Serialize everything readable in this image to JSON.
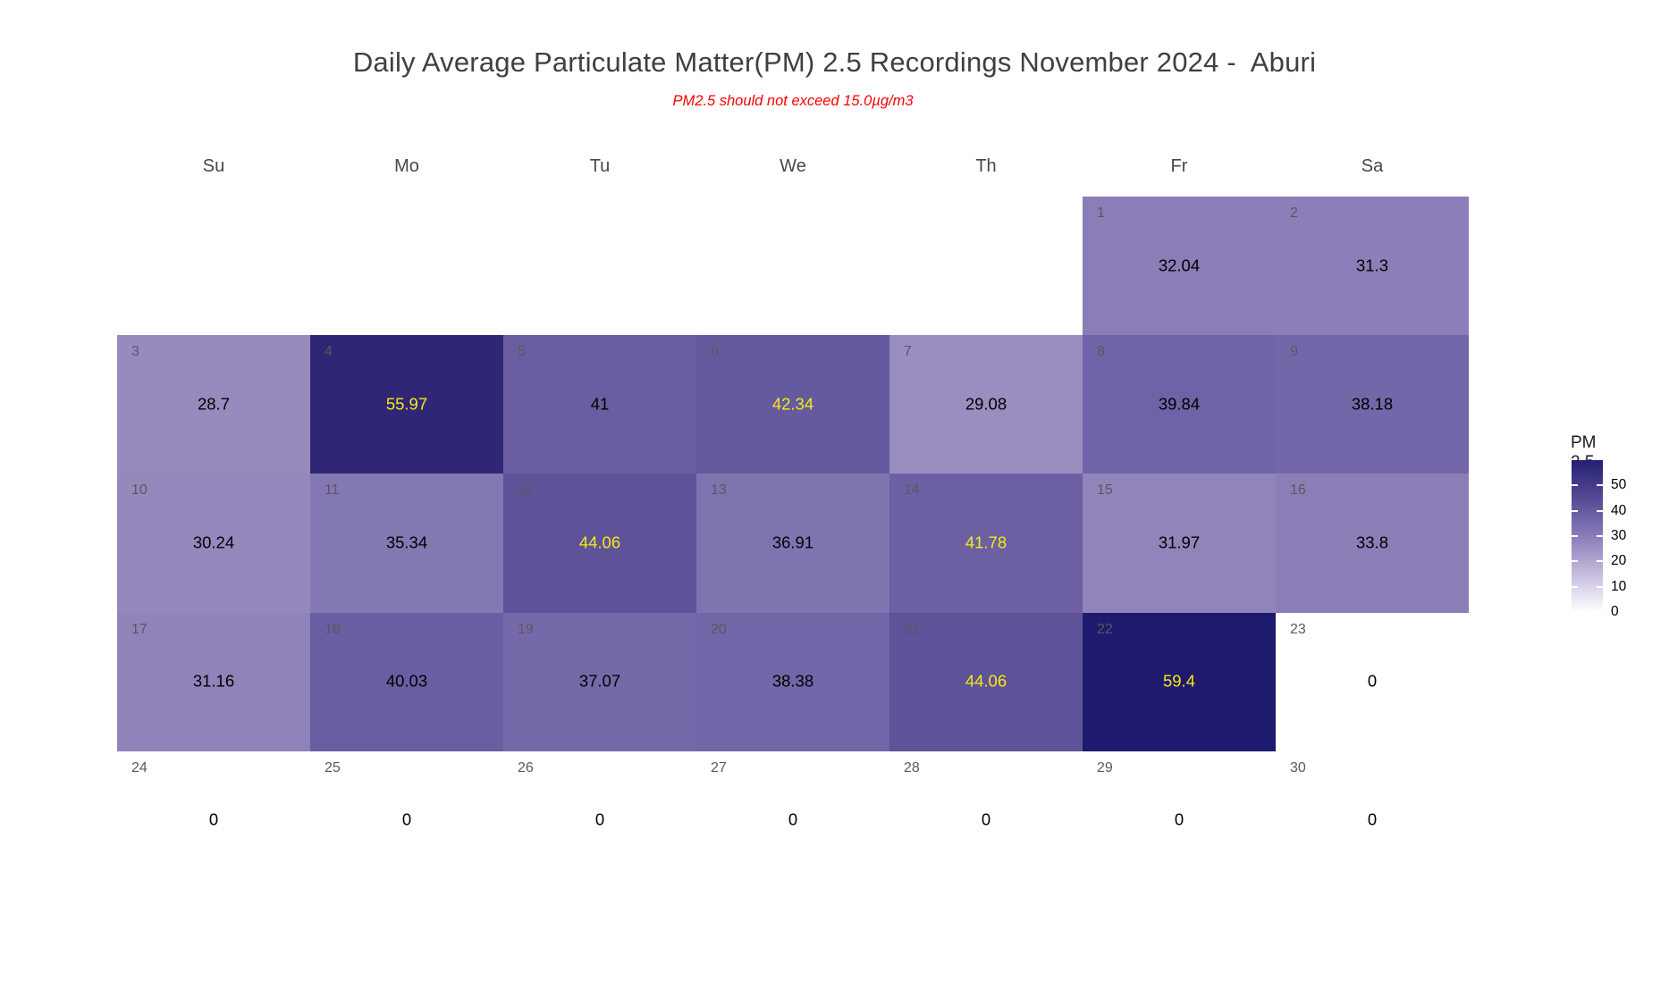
{
  "title": {
    "text": "Daily Average Particulate Matter(PM) 2.5 Recordings November 2024 -  Aburi",
    "color": "#3f3f3f"
  },
  "subtitle": {
    "text": "PM2.5 should not exceed 15.0µg/m3",
    "color": "#ff0000"
  },
  "chart_data": {
    "type": "heatmap",
    "subtype": "calendar-heatmap",
    "month": "November 2024",
    "location": "Aburi",
    "day_headers": [
      "Su",
      "Mo",
      "Tu",
      "We",
      "Th",
      "Fr",
      "Sa"
    ],
    "value_range": [
      0,
      60
    ],
    "day_number_color": "#5b5760",
    "default_value_color": "#000000",
    "exceed_value_color": "#f7e918",
    "cells": [
      {
        "day": 1,
        "col": 5,
        "week": 0,
        "value": 32.04,
        "label": "32.04",
        "bg": "#8b7db7",
        "fg": "#000000"
      },
      {
        "day": 2,
        "col": 6,
        "week": 0,
        "value": 31.3,
        "label": "31.3",
        "bg": "#8c7eb8",
        "fg": "#000000"
      },
      {
        "day": 3,
        "col": 0,
        "week": 1,
        "value": 28.7,
        "label": "28.7",
        "bg": "#978abd",
        "fg": "#000000"
      },
      {
        "day": 4,
        "col": 1,
        "week": 1,
        "value": 55.97,
        "label": "55.97",
        "bg": "#2f2776",
        "fg": "#f7e918"
      },
      {
        "day": 5,
        "col": 2,
        "week": 1,
        "value": 41,
        "label": "41",
        "bg": "#6a5da1",
        "fg": "#000000"
      },
      {
        "day": 6,
        "col": 3,
        "week": 1,
        "value": 42.34,
        "label": "42.34",
        "bg": "#655a9e",
        "fg": "#f7e918"
      },
      {
        "day": 7,
        "col": 4,
        "week": 1,
        "value": 29.08,
        "label": "29.08",
        "bg": "#9a8dc0",
        "fg": "#000000"
      },
      {
        "day": 8,
        "col": 5,
        "week": 1,
        "value": 39.84,
        "label": "39.84",
        "bg": "#6f63a7",
        "fg": "#000000"
      },
      {
        "day": 9,
        "col": 6,
        "week": 1,
        "value": 38.18,
        "label": "38.18",
        "bg": "#7367a9",
        "fg": "#000000"
      },
      {
        "day": 10,
        "col": 0,
        "week": 2,
        "value": 30.24,
        "label": "30.24",
        "bg": "#9488bc",
        "fg": "#000000"
      },
      {
        "day": 11,
        "col": 1,
        "week": 2,
        "value": 35.34,
        "label": "35.34",
        "bg": "#8478b3",
        "fg": "#000000"
      },
      {
        "day": 12,
        "col": 2,
        "week": 2,
        "value": 44.06,
        "label": "44.06",
        "bg": "#5e5299",
        "fg": "#f7e918"
      },
      {
        "day": 13,
        "col": 3,
        "week": 2,
        "value": 36.91,
        "label": "36.91",
        "bg": "#7f73b0",
        "fg": "#000000"
      },
      {
        "day": 14,
        "col": 4,
        "week": 2,
        "value": 41.78,
        "label": "41.78",
        "bg": "#6c60a3",
        "fg": "#f7e918"
      },
      {
        "day": 15,
        "col": 5,
        "week": 2,
        "value": 31.97,
        "label": "31.97",
        "bg": "#9184bb",
        "fg": "#000000"
      },
      {
        "day": 16,
        "col": 6,
        "week": 2,
        "value": 33.8,
        "label": "33.8",
        "bg": "#8b7eb7",
        "fg": "#000000"
      },
      {
        "day": 17,
        "col": 0,
        "week": 3,
        "value": 31.16,
        "label": "31.16",
        "bg": "#9083ba",
        "fg": "#000000"
      },
      {
        "day": 18,
        "col": 1,
        "week": 3,
        "value": 40.03,
        "label": "40.03",
        "bg": "#6a5ea2",
        "fg": "#000000"
      },
      {
        "day": 19,
        "col": 2,
        "week": 3,
        "value": 37.07,
        "label": "37.07",
        "bg": "#7569aa",
        "fg": "#000000"
      },
      {
        "day": 20,
        "col": 3,
        "week": 3,
        "value": 38.38,
        "label": "38.38",
        "bg": "#7266a8",
        "fg": "#000000"
      },
      {
        "day": 21,
        "col": 4,
        "week": 3,
        "value": 44.06,
        "label": "44.06",
        "bg": "#5e5299",
        "fg": "#f7e918"
      },
      {
        "day": 22,
        "col": 5,
        "week": 3,
        "value": 59.4,
        "label": "59.4",
        "bg": "#1e1a6d",
        "fg": "#f7e918"
      },
      {
        "day": 23,
        "col": 6,
        "week": 3,
        "value": 0,
        "label": "0",
        "bg": "#ffffff",
        "fg": "#000000"
      },
      {
        "day": 24,
        "col": 0,
        "week": 4,
        "value": 0,
        "label": "0",
        "bg": "#ffffff",
        "fg": "#000000"
      },
      {
        "day": 25,
        "col": 1,
        "week": 4,
        "value": 0,
        "label": "0",
        "bg": "#ffffff",
        "fg": "#000000"
      },
      {
        "day": 26,
        "col": 2,
        "week": 4,
        "value": 0,
        "label": "0",
        "bg": "#ffffff",
        "fg": "#000000"
      },
      {
        "day": 27,
        "col": 3,
        "week": 4,
        "value": 0,
        "label": "0",
        "bg": "#ffffff",
        "fg": "#000000"
      },
      {
        "day": 28,
        "col": 4,
        "week": 4,
        "value": 0,
        "label": "0",
        "bg": "#ffffff",
        "fg": "#000000"
      },
      {
        "day": 29,
        "col": 5,
        "week": 4,
        "value": 0,
        "label": "0",
        "bg": "#ffffff",
        "fg": "#000000"
      },
      {
        "day": 30,
        "col": 6,
        "week": 4,
        "value": 0,
        "label": "0",
        "bg": "#ffffff",
        "fg": "#000000"
      }
    ],
    "legend": {
      "title": "PM 2.5",
      "position": "right",
      "ticks": [
        50,
        40,
        30,
        20,
        10,
        0
      ],
      "gradient_top_to_bottom": [
        "#252074",
        "#554a93",
        "#8a7cb8",
        "#c4bcdd",
        "#ffffff"
      ]
    },
    "grid": "off"
  }
}
